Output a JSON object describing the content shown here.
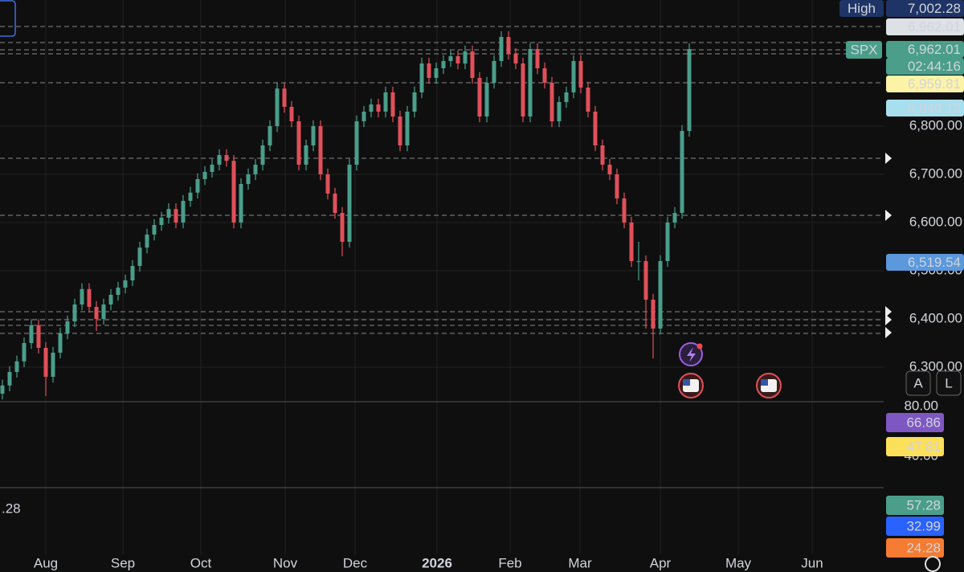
{
  "chart_data": {
    "type": "candlestick",
    "symbol": "SPX",
    "colors": {
      "up": "#4a9e8a",
      "down": "#e0505a"
    },
    "ylim": [
      6228.33,
      7061.67
    ],
    "yticks": [
      {
        "value": 6300,
        "label": "6,300.00"
      },
      {
        "value": 6400,
        "label": "6,400.00"
      },
      {
        "value": 6500,
        "label": "6,500.00"
      },
      {
        "value": 6600,
        "label": "6,600.00"
      },
      {
        "value": 6700,
        "label": "6,700.00"
      },
      {
        "value": 6800,
        "label": "6,800.00"
      }
    ],
    "xticks": [
      "Aug",
      "Sep",
      "Oct",
      "Nov",
      "Dec",
      "2026",
      "Feb",
      "Mar",
      "Apr",
      "May",
      "Jun"
    ],
    "high": {
      "label": "High",
      "value": "7,002.28"
    },
    "price_tags": [
      "6,962.01",
      "6,962.01",
      "02:44:16",
      "6,959.81",
      "6,840.13",
      "6,519.54"
    ],
    "pane2": {
      "yticks": [
        {
          "value": 80,
          "label": "80.00"
        },
        {
          "value": 40,
          "label": "40.00"
        }
      ],
      "tags": [
        "66.86",
        "47.81"
      ]
    },
    "pane3": {
      "left_label": ".28",
      "tags": [
        "57.28",
        "32.99",
        "24.28"
      ]
    },
    "buttons": [
      "A",
      "L"
    ],
    "ohlc": [
      [
        6245,
        6274,
        6233,
        6262
      ],
      [
        6262,
        6302,
        6250,
        6290
      ],
      [
        6290,
        6324,
        6278,
        6312
      ],
      [
        6312,
        6362,
        6300,
        6350
      ],
      [
        6350,
        6399,
        6338,
        6387
      ],
      [
        6387,
        6399,
        6328,
        6340
      ],
      [
        6340,
        6352,
        6240,
        6280
      ],
      [
        6280,
        6342,
        6268,
        6330
      ],
      [
        6330,
        6382,
        6318,
        6370
      ],
      [
        6370,
        6407,
        6358,
        6395
      ],
      [
        6395,
        6442,
        6383,
        6430
      ],
      [
        6430,
        6474,
        6418,
        6462
      ],
      [
        6462,
        6474,
        6413,
        6425
      ],
      [
        6425,
        6437,
        6375,
        6400
      ],
      [
        6400,
        6442,
        6388,
        6430
      ],
      [
        6430,
        6462,
        6418,
        6450
      ],
      [
        6450,
        6477,
        6438,
        6465
      ],
      [
        6465,
        6492,
        6453,
        6480
      ],
      [
        6480,
        6522,
        6468,
        6510
      ],
      [
        6510,
        6560,
        6498,
        6548
      ],
      [
        6548,
        6587,
        6536,
        6575
      ],
      [
        6575,
        6607,
        6563,
        6595
      ],
      [
        6595,
        6622,
        6583,
        6610
      ],
      [
        6610,
        6640,
        6598,
        6628
      ],
      [
        6628,
        6640,
        6588,
        6600
      ],
      [
        6600,
        6657,
        6588,
        6645
      ],
      [
        6645,
        6674,
        6633,
        6662
      ],
      [
        6662,
        6702,
        6650,
        6690
      ],
      [
        6690,
        6717,
        6678,
        6705
      ],
      [
        6705,
        6732,
        6693,
        6720
      ],
      [
        6720,
        6752,
        6708,
        6740
      ],
      [
        6740,
        6752,
        6716,
        6728
      ],
      [
        6728,
        6740,
        6588,
        6600
      ],
      [
        6600,
        6692,
        6588,
        6680
      ],
      [
        6680,
        6712,
        6668,
        6700
      ],
      [
        6700,
        6732,
        6688,
        6720
      ],
      [
        6720,
        6772,
        6708,
        6760
      ],
      [
        6760,
        6812,
        6748,
        6800
      ],
      [
        6800,
        6890,
        6788,
        6878
      ],
      [
        6878,
        6890,
        6828,
        6840
      ],
      [
        6840,
        6852,
        6798,
        6810
      ],
      [
        6810,
        6822,
        6708,
        6720
      ],
      [
        6720,
        6772,
        6708,
        6760
      ],
      [
        6760,
        6812,
        6748,
        6800
      ],
      [
        6800,
        6812,
        6688,
        6700
      ],
      [
        6700,
        6712,
        6648,
        6660
      ],
      [
        6660,
        6672,
        6608,
        6620
      ],
      [
        6620,
        6632,
        6530,
        6560
      ],
      [
        6560,
        6732,
        6548,
        6720
      ],
      [
        6720,
        6822,
        6708,
        6810
      ],
      [
        6810,
        6842,
        6798,
        6830
      ],
      [
        6830,
        6857,
        6818,
        6845
      ],
      [
        6845,
        6857,
        6818,
        6830
      ],
      [
        6830,
        6882,
        6818,
        6870
      ],
      [
        6870,
        6882,
        6808,
        6820
      ],
      [
        6820,
        6832,
        6748,
        6760
      ],
      [
        6760,
        6842,
        6748,
        6830
      ],
      [
        6830,
        6882,
        6818,
        6870
      ],
      [
        6870,
        6942,
        6858,
        6930
      ],
      [
        6930,
        6942,
        6888,
        6900
      ],
      [
        6900,
        6932,
        6888,
        6920
      ],
      [
        6920,
        6947,
        6908,
        6935
      ],
      [
        6935,
        6957,
        6923,
        6945
      ],
      [
        6945,
        6957,
        6918,
        6930
      ],
      [
        6930,
        6967,
        6918,
        6955
      ],
      [
        6955,
        6967,
        6888,
        6900
      ],
      [
        6900,
        6912,
        6808,
        6820
      ],
      [
        6820,
        6902,
        6808,
        6890
      ],
      [
        6890,
        6947,
        6878,
        6935
      ],
      [
        6935,
        6997,
        6923,
        6985
      ],
      [
        6985,
        6997,
        6938,
        6950
      ],
      [
        6950,
        6962,
        6918,
        6930
      ],
      [
        6930,
        6942,
        6808,
        6820
      ],
      [
        6820,
        6972,
        6808,
        6960
      ],
      [
        6960,
        6972,
        6908,
        6920
      ],
      [
        6920,
        6932,
        6878,
        6890
      ],
      [
        6890,
        6902,
        6798,
        6810
      ],
      [
        6810,
        6862,
        6798,
        6850
      ],
      [
        6850,
        6882,
        6838,
        6870
      ],
      [
        6870,
        6947,
        6858,
        6935
      ],
      [
        6935,
        6947,
        6868,
        6880
      ],
      [
        6880,
        6892,
        6818,
        6830
      ],
      [
        6830,
        6842,
        6748,
        6760
      ],
      [
        6760,
        6772,
        6708,
        6720
      ],
      [
        6720,
        6732,
        6688,
        6700
      ],
      [
        6700,
        6712,
        6638,
        6650
      ],
      [
        6650,
        6662,
        6588,
        6600
      ],
      [
        6600,
        6612,
        6508,
        6520
      ],
      [
        6520,
        6560,
        6480,
        6520
      ],
      [
        6520,
        6532,
        6380,
        6440
      ],
      [
        6440,
        6452,
        6318,
        6380
      ],
      [
        6380,
        6532,
        6368,
        6520
      ],
      [
        6520,
        6612,
        6508,
        6600
      ],
      [
        6600,
        6632,
        6588,
        6620
      ],
      [
        6620,
        6802,
        6608,
        6790
      ],
      [
        6790,
        6972,
        6778,
        6959.81
      ]
    ]
  }
}
